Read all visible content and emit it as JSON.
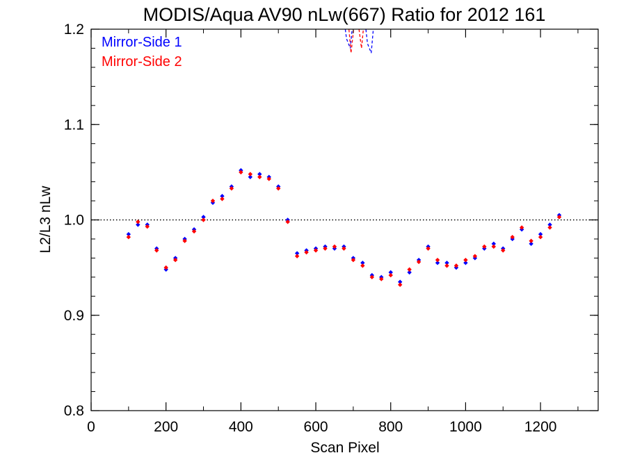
{
  "chart_data": {
    "type": "scatter",
    "title": "MODIS/Aqua AV90 nLw(667) Ratio for 2012 161",
    "xlabel": "Scan Pixel",
    "ylabel": "L2/L3 nLw",
    "xlim": [
      0,
      1354
    ],
    "ylim": [
      0.8,
      1.2
    ],
    "x_ticks": [
      "0",
      "200",
      "400",
      "600",
      "800",
      "1000",
      "1200"
    ],
    "y_ticks": [
      "0.8",
      "0.9",
      "1.0",
      "1.1",
      "1.2"
    ],
    "reference_line": 1.0,
    "legend_position": "top-left",
    "colors": {
      "ms1": "#0000ff",
      "ms2": "#ff0000",
      "axis": "#000000",
      "reference": "#000000"
    },
    "series": [
      {
        "name": "Mirror-Side 1",
        "x": [
          100,
          125,
          150,
          175,
          200,
          225,
          250,
          275,
          300,
          325,
          350,
          375,
          400,
          425,
          450,
          475,
          500,
          525,
          550,
          575,
          600,
          625,
          650,
          675,
          700,
          725,
          750,
          775,
          800,
          825,
          850,
          875,
          900,
          925,
          950,
          975,
          1000,
          1025,
          1050,
          1075,
          1100,
          1125,
          1150,
          1175,
          1200,
          1225,
          1250
        ],
        "y": [
          0.985,
          0.995,
          0.995,
          0.97,
          0.948,
          0.96,
          0.98,
          0.99,
          1.003,
          1.018,
          1.025,
          1.035,
          1.052,
          1.045,
          1.048,
          1.045,
          1.035,
          1.0,
          0.965,
          0.968,
          0.97,
          0.972,
          0.97,
          0.972,
          0.96,
          0.955,
          0.942,
          0.94,
          0.945,
          0.935,
          0.945,
          0.958,
          0.972,
          0.955,
          0.955,
          0.95,
          0.955,
          0.96,
          0.97,
          0.975,
          0.97,
          0.98,
          0.99,
          0.975,
          0.985,
          0.995,
          1.005
        ]
      },
      {
        "name": "Mirror-Side 2",
        "x": [
          100,
          125,
          150,
          175,
          200,
          225,
          250,
          275,
          300,
          325,
          350,
          375,
          400,
          425,
          450,
          475,
          500,
          525,
          550,
          575,
          600,
          625,
          650,
          675,
          700,
          725,
          750,
          775,
          800,
          825,
          850,
          875,
          900,
          925,
          950,
          975,
          1000,
          1025,
          1050,
          1075,
          1100,
          1125,
          1150,
          1175,
          1200,
          1225,
          1250
        ],
        "y": [
          0.982,
          0.998,
          0.993,
          0.968,
          0.95,
          0.958,
          0.978,
          0.988,
          1.0,
          1.02,
          1.022,
          1.033,
          1.05,
          1.048,
          1.045,
          1.043,
          1.033,
          0.998,
          0.962,
          0.966,
          0.968,
          0.97,
          0.972,
          0.97,
          0.958,
          0.952,
          0.94,
          0.938,
          0.942,
          0.932,
          0.948,
          0.956,
          0.97,
          0.958,
          0.952,
          0.952,
          0.958,
          0.962,
          0.972,
          0.972,
          0.968,
          0.982,
          0.992,
          0.978,
          0.982,
          0.992,
          1.003
        ]
      }
    ],
    "offscale_dashed_lines": [
      {
        "series": "Mirror-Side 1",
        "x": [
          672,
          682,
          692,
          702
        ],
        "y": [
          1.22,
          1.19,
          1.18,
          1.22
        ]
      },
      {
        "series": "Mirror-Side 1",
        "x": [
          728,
          738,
          748,
          758
        ],
        "y": [
          1.22,
          1.185,
          1.175,
          1.22
        ]
      },
      {
        "series": "Mirror-Side 2",
        "x": [
          684,
          694,
          704
        ],
        "y": [
          1.22,
          1.175,
          1.21
        ]
      },
      {
        "series": "Mirror-Side 2",
        "x": [
          712,
          722,
          732
        ],
        "y": [
          1.21,
          1.18,
          1.22
        ]
      }
    ]
  }
}
